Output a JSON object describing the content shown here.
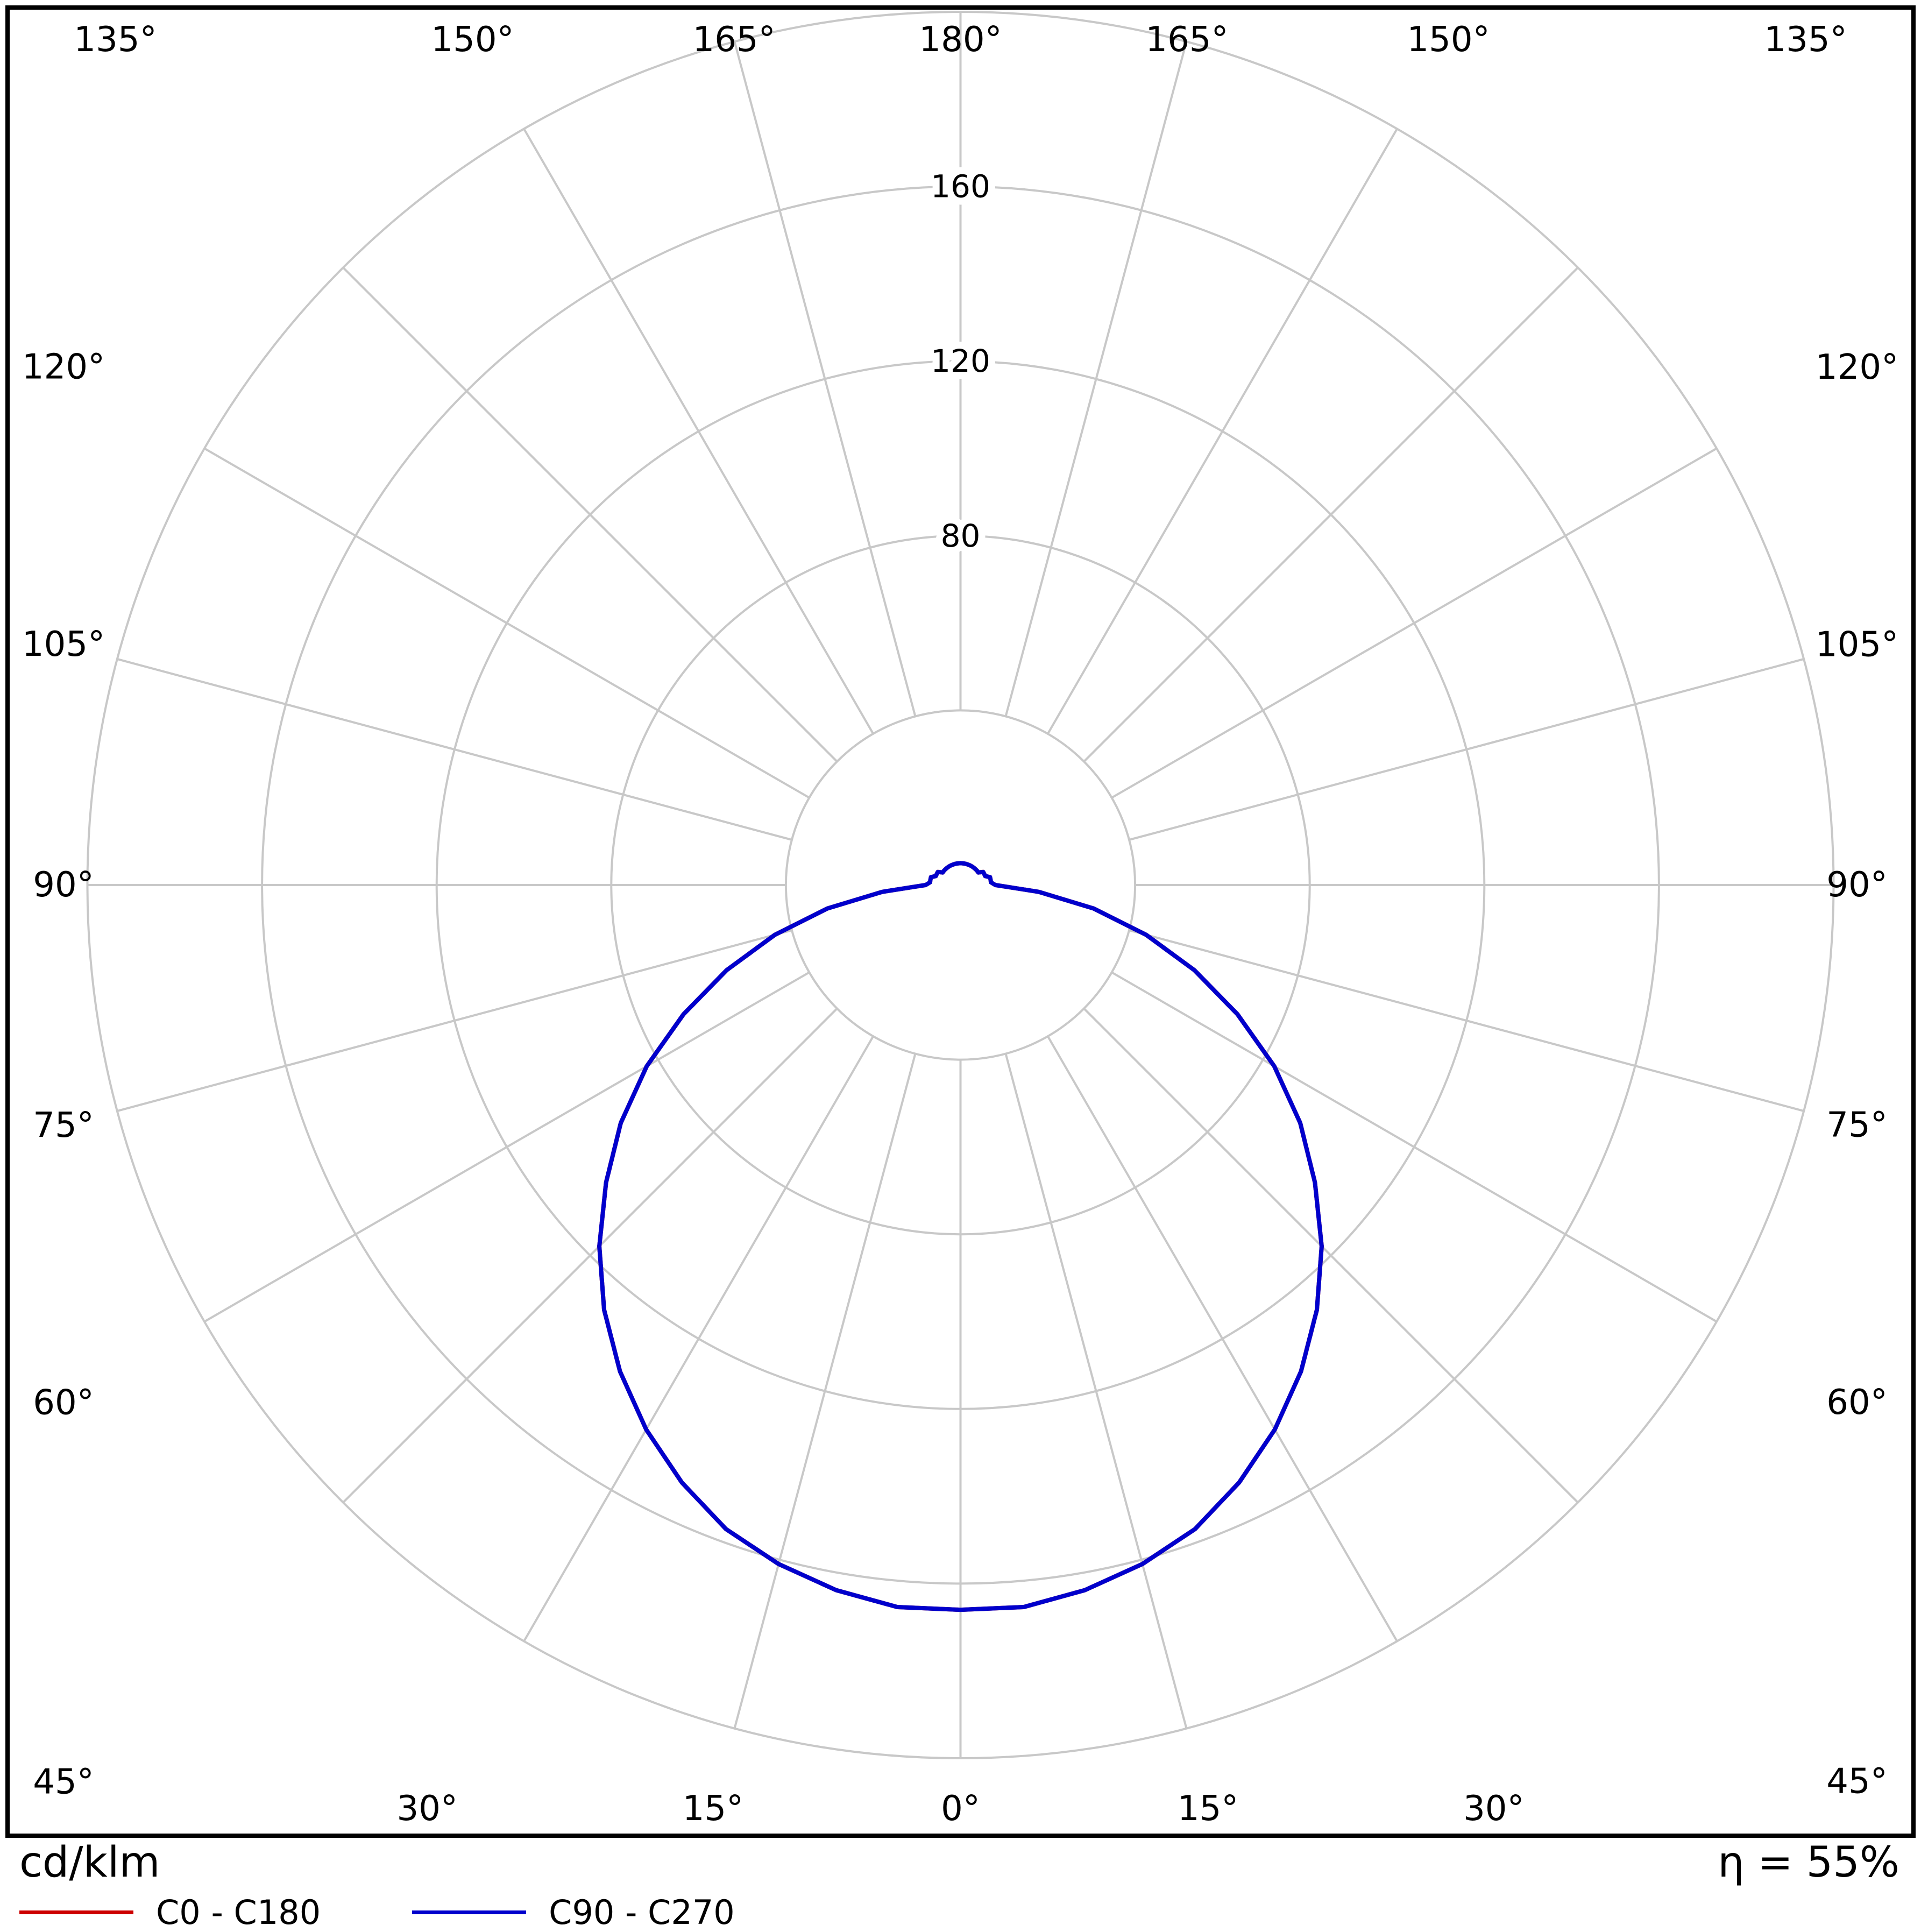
{
  "chart_data": {
    "type": "line",
    "projection": "polar",
    "description": "Luminous intensity distribution curve (photometric polar diagram)",
    "units_label": "cd/klm",
    "efficiency_label": "η = 55%",
    "efficiency_percent": 55,
    "radial_axis": {
      "rings": [
        40,
        80,
        120,
        160,
        200
      ],
      "labeled_rings": [
        80,
        120,
        160
      ],
      "ring_step": 40,
      "max": 200,
      "units": "cd/klm"
    },
    "angular_axis": {
      "labels_deg": [
        0,
        15,
        30,
        45,
        60,
        75,
        90,
        105,
        120,
        135,
        150,
        165,
        180
      ],
      "step_deg": 15,
      "zero_position": "bottom",
      "mirrored": true
    },
    "grid": {
      "color": "#c8c8c8",
      "frame_color": "#000000"
    },
    "series": [
      {
        "name": "C0 - C180",
        "color": "#cc0000",
        "gamma_deg": [
          0,
          5,
          10,
          15,
          20,
          25,
          30,
          35,
          40,
          45,
          50,
          55,
          60,
          65,
          70,
          75,
          80,
          85,
          90,
          95,
          100,
          105,
          110,
          115,
          120,
          125,
          130,
          135,
          140,
          145,
          150,
          155,
          160,
          165,
          170,
          175,
          180
        ],
        "values_cd_per_klm": [
          166,
          166,
          164,
          161,
          157,
          151,
          144,
          136,
          127,
          117,
          106,
          95,
          83,
          70,
          57,
          44,
          31,
          18,
          8,
          7,
          7,
          7,
          6,
          6,
          6,
          5,
          5,
          5,
          5,
          5,
          5,
          5,
          5,
          5,
          5,
          5,
          5
        ]
      },
      {
        "name": "C90 - C270",
        "color": "#0000cc",
        "gamma_deg": [
          0,
          5,
          10,
          15,
          20,
          25,
          30,
          35,
          40,
          45,
          50,
          55,
          60,
          65,
          70,
          75,
          80,
          85,
          90,
          95,
          100,
          105,
          110,
          115,
          120,
          125,
          130,
          135,
          140,
          145,
          150,
          155,
          160,
          165,
          170,
          175,
          180
        ],
        "values_cd_per_klm": [
          166,
          166,
          164,
          161,
          157,
          151,
          144,
          136,
          127,
          117,
          106,
          95,
          83,
          70,
          57,
          44,
          31,
          18,
          8,
          7,
          7,
          7,
          6,
          6,
          6,
          5,
          5,
          5,
          5,
          5,
          5,
          5,
          5,
          5,
          5,
          5,
          5
        ]
      }
    ]
  },
  "footer": {
    "units": "cd/klm",
    "efficiency": "η = 55%"
  },
  "legend": {
    "entries": [
      {
        "label": "C0 - C180",
        "color": "#cc0000"
      },
      {
        "label": "C90 - C270",
        "color": "#0000cc"
      }
    ]
  }
}
